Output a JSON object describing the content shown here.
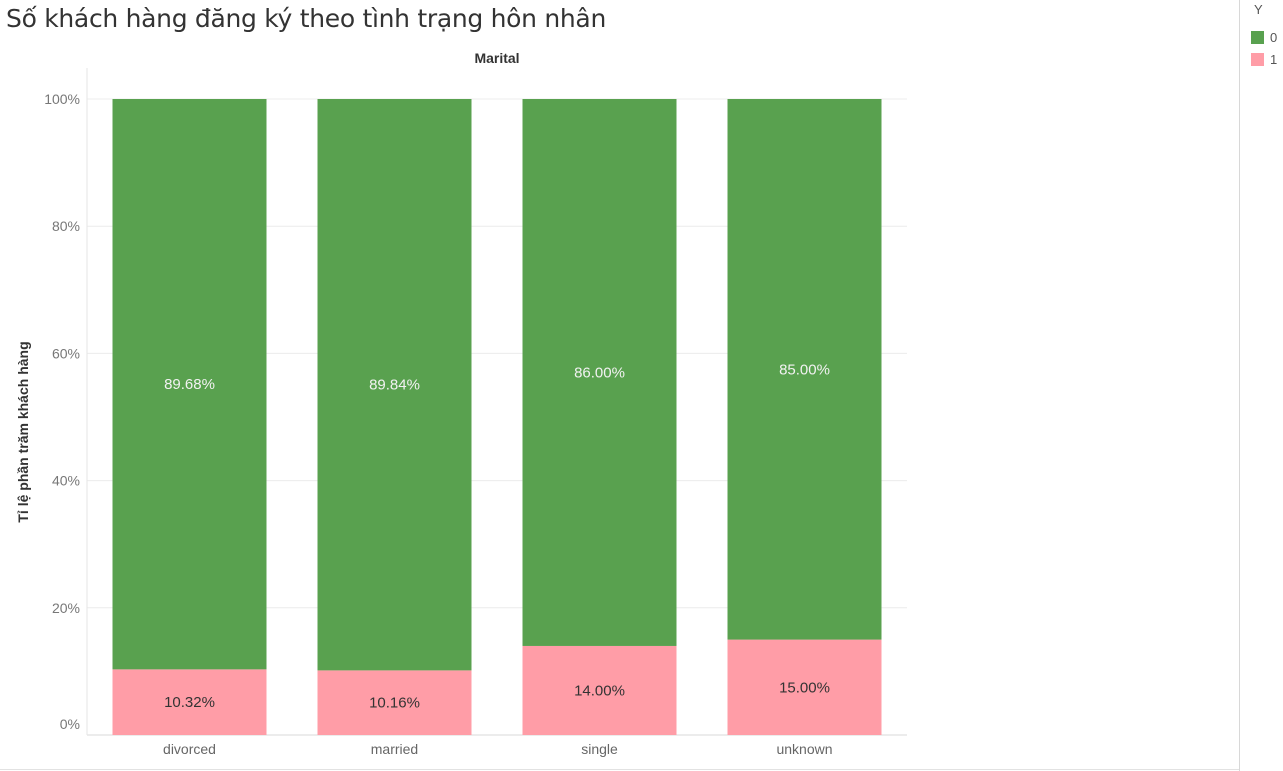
{
  "title": "Số khách hàng đăng ký theo tình trạng hôn nhân",
  "legend": {
    "title": "Y",
    "items": [
      {
        "label": "0",
        "color": "#59a14f"
      },
      {
        "label": "1",
        "color": "#ff9da7"
      }
    ]
  },
  "chart_data": {
    "type": "bar",
    "stacked": true,
    "title": "Số khách hàng đăng ký theo tình trạng hôn nhân",
    "xlabel": "Marital",
    "ylabel": "Tỉ lệ phần trăm khách hàng",
    "categories": [
      "divorced",
      "married",
      "single",
      "unknown"
    ],
    "ylim": [
      0,
      100
    ],
    "yticks": [
      "0%",
      "20%",
      "40%",
      "60%",
      "80%",
      "100%"
    ],
    "grid": true,
    "legend_position": "top-right",
    "series": [
      {
        "name": "1",
        "color": "#ff9da7",
        "values": [
          10.32,
          10.16,
          14.0,
          15.0
        ],
        "labels": [
          "10.32%",
          "10.16%",
          "14.00%",
          "15.00%"
        ]
      },
      {
        "name": "0",
        "color": "#59a14f",
        "values": [
          89.68,
          89.84,
          86.0,
          85.0
        ],
        "labels": [
          "89.68%",
          "89.84%",
          "86.00%",
          "85.00%"
        ]
      }
    ]
  }
}
